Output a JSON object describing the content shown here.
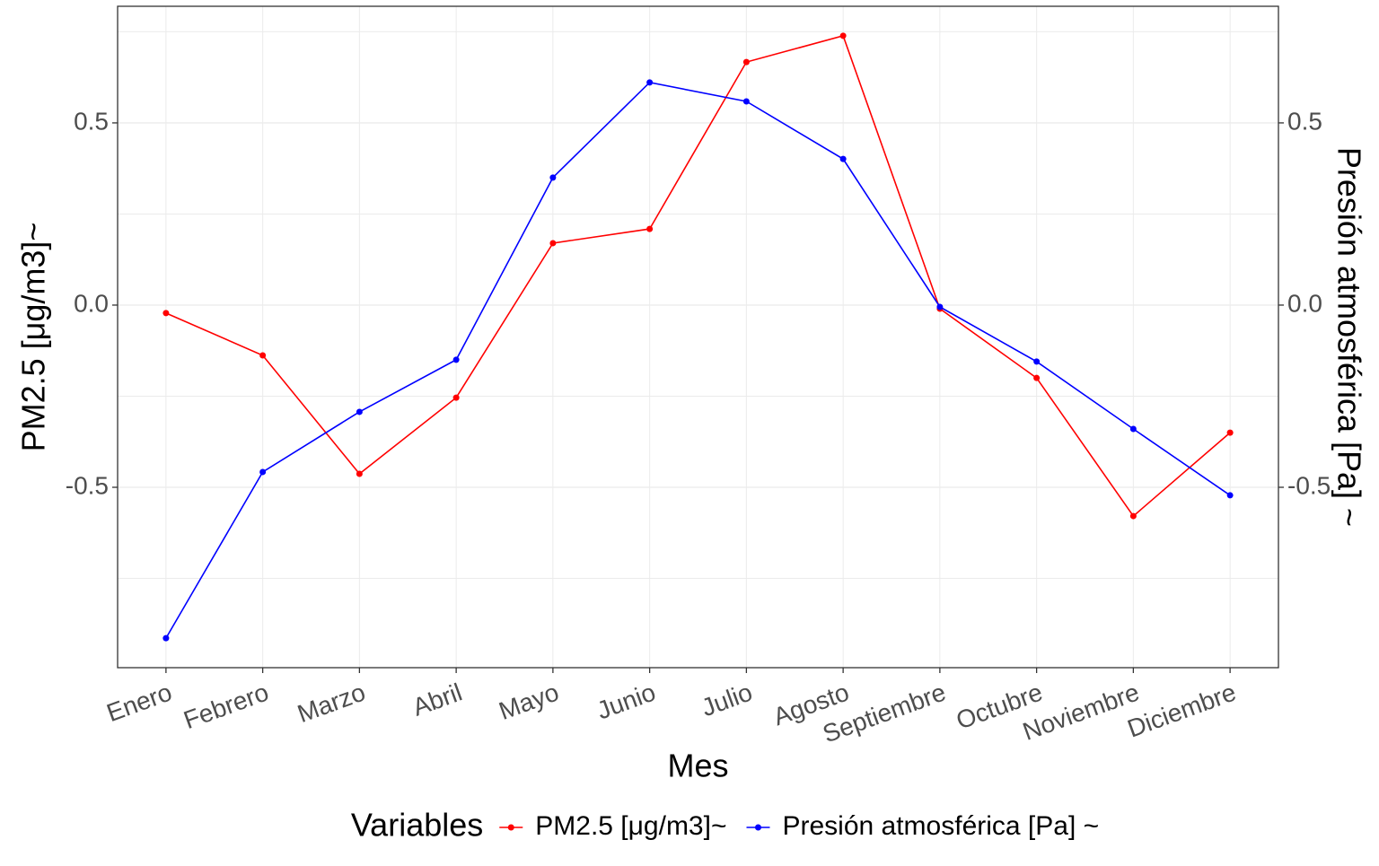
{
  "chart_data": {
    "type": "line",
    "x_label": "Mes",
    "y_label": "PM2.5 [μg/m3]~",
    "y2_label": "Presión atmosférica [Pa] ~",
    "legend_title": "Variables",
    "legend": "bottom",
    "grid": true,
    "categories": [
      "Enero",
      "Febrero",
      "Marzo",
      "Abril",
      "Mayo",
      "Junio",
      "Julio",
      "Agosto",
      "Septiembre",
      "Octubre",
      "Noviembre",
      "Diciembre"
    ],
    "series": [
      {
        "name": "PM2.5 [μg/m3]~",
        "color": "#ff0000",
        "values": [
          -0.022,
          -0.138,
          -0.463,
          -0.254,
          0.17,
          0.209,
          0.667,
          0.739,
          -0.01,
          -0.2,
          -0.579,
          -0.35
        ]
      },
      {
        "name": "Presión atmosférica [Pa] ~",
        "color": "#0000ff",
        "axis": "y2",
        "values": [
          -0.914,
          -0.458,
          -0.293,
          -0.15,
          0.35,
          0.611,
          0.559,
          0.401,
          -0.005,
          -0.155,
          -0.34,
          -0.522
        ]
      }
    ],
    "ylim": [
      -0.995,
      0.82
    ],
    "yticks": [
      -0.5,
      {
        "value": 0,
        "label": "0.0"
      },
      0.5
    ],
    "y2lim": [
      -0.995,
      0.82
    ],
    "y2ticks": [
      -0.5,
      {
        "value": 0,
        "label": "0.0"
      },
      0.5
    ]
  }
}
